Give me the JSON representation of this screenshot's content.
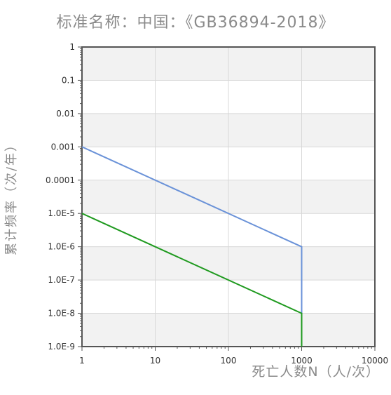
{
  "chart_data": {
    "type": "line",
    "title": "标准名称：中国：《GB36894-2018》",
    "xlabel": "死亡人数N（人/次）",
    "ylabel": "累计频率（次/年）",
    "x_scale": "log",
    "y_scale": "log",
    "xlim": [
      1,
      10000
    ],
    "ylim": [
      1e-09,
      1
    ],
    "x_tick_labels": [
      "1",
      "10",
      "100",
      "1000",
      "10000"
    ],
    "y_tick_labels": [
      "1",
      "0.1",
      "0.01",
      "0.001",
      "0.0001",
      "1.0E-5",
      "1.0E-6",
      "1.0E-7",
      "1.0E-8",
      "1.0E-9"
    ],
    "grid": true,
    "series": [
      {
        "color": "#6a92d8",
        "points": [
          [
            1,
            0.001
          ],
          [
            1000,
            1e-06
          ],
          [
            1000,
            1e-09
          ]
        ]
      },
      {
        "color": "#1f9a1f",
        "points": [
          [
            1,
            1e-05
          ],
          [
            1000,
            1e-08
          ],
          [
            1000,
            1e-09
          ]
        ]
      }
    ]
  }
}
